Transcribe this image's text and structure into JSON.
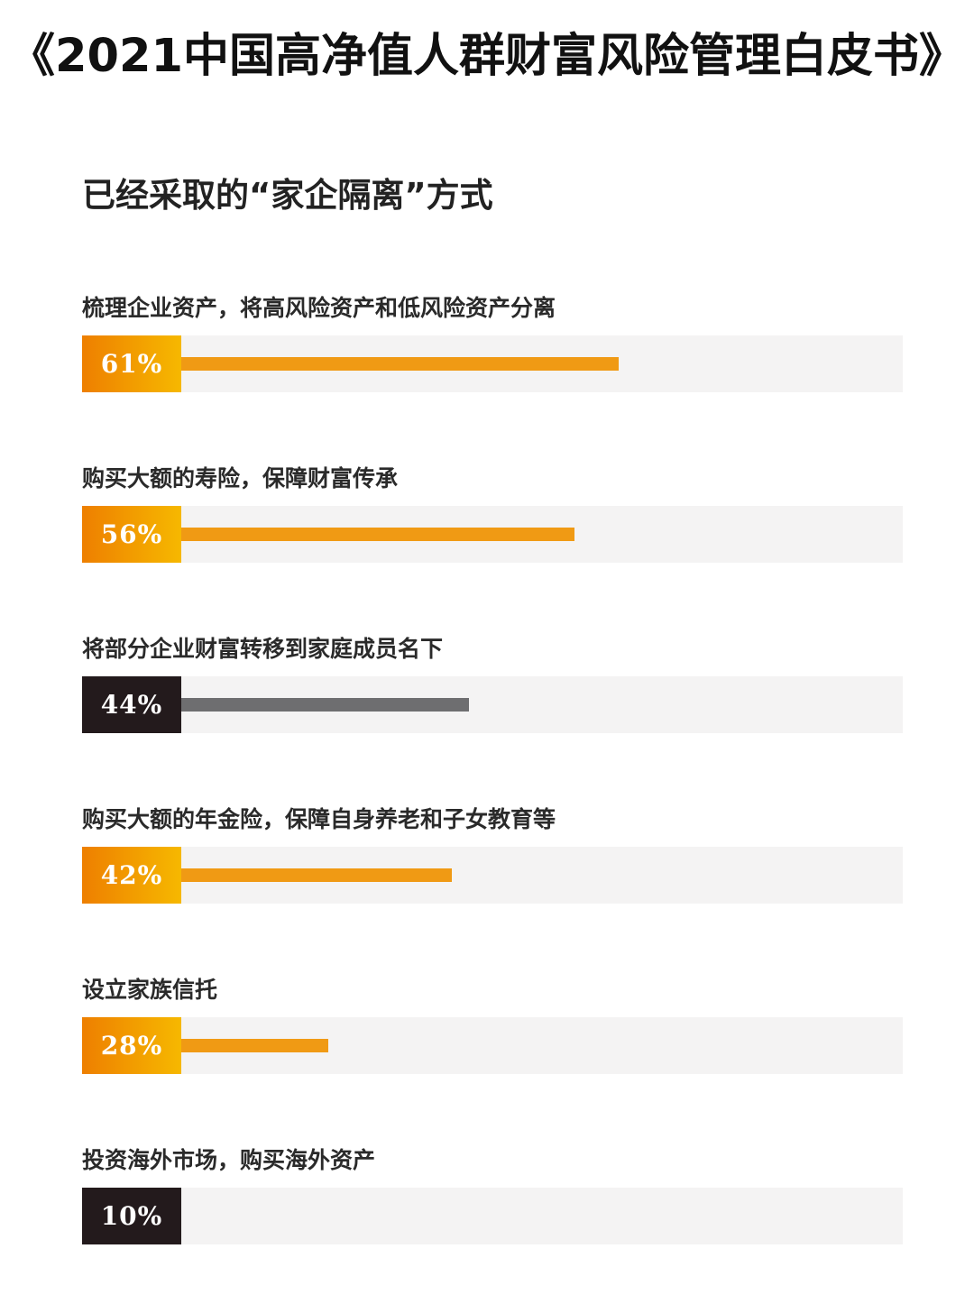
{
  "header": {
    "title": "《2021中国高净值人群财富风险管理白皮书》",
    "subtitle": "已经采取的“家企隔离”方式"
  },
  "colors": {
    "orange_badge_start": "#ee7f00",
    "orange_badge_end": "#f6b800",
    "orange_bar": "#f09a14",
    "dark_badge": "#231a1c",
    "gray_bar": "#6e6e70",
    "track": "#f4f3f3"
  },
  "chart_data": {
    "type": "bar",
    "orientation": "horizontal",
    "title": "已经采取的“家企隔离”方式",
    "xlim": [
      0,
      100
    ],
    "grid": false,
    "categories": [
      "梳理企业资产，将高风险资产和低风险资产分离",
      "购买大额的寿险，保障财富传承",
      "将部分企业财富转移到家庭成员名下",
      "购买大额的年金险，保障自身养老和子女教育等",
      "设立家族信托",
      "投资海外市场，购买海外资产"
    ],
    "values": [
      61,
      56,
      44,
      42,
      28,
      10
    ],
    "value_labels": [
      "61%",
      "56%",
      "44%",
      "42%",
      "28%",
      "10%"
    ],
    "styles": [
      "orange",
      "orange",
      "dark",
      "orange",
      "orange",
      "dark"
    ]
  }
}
